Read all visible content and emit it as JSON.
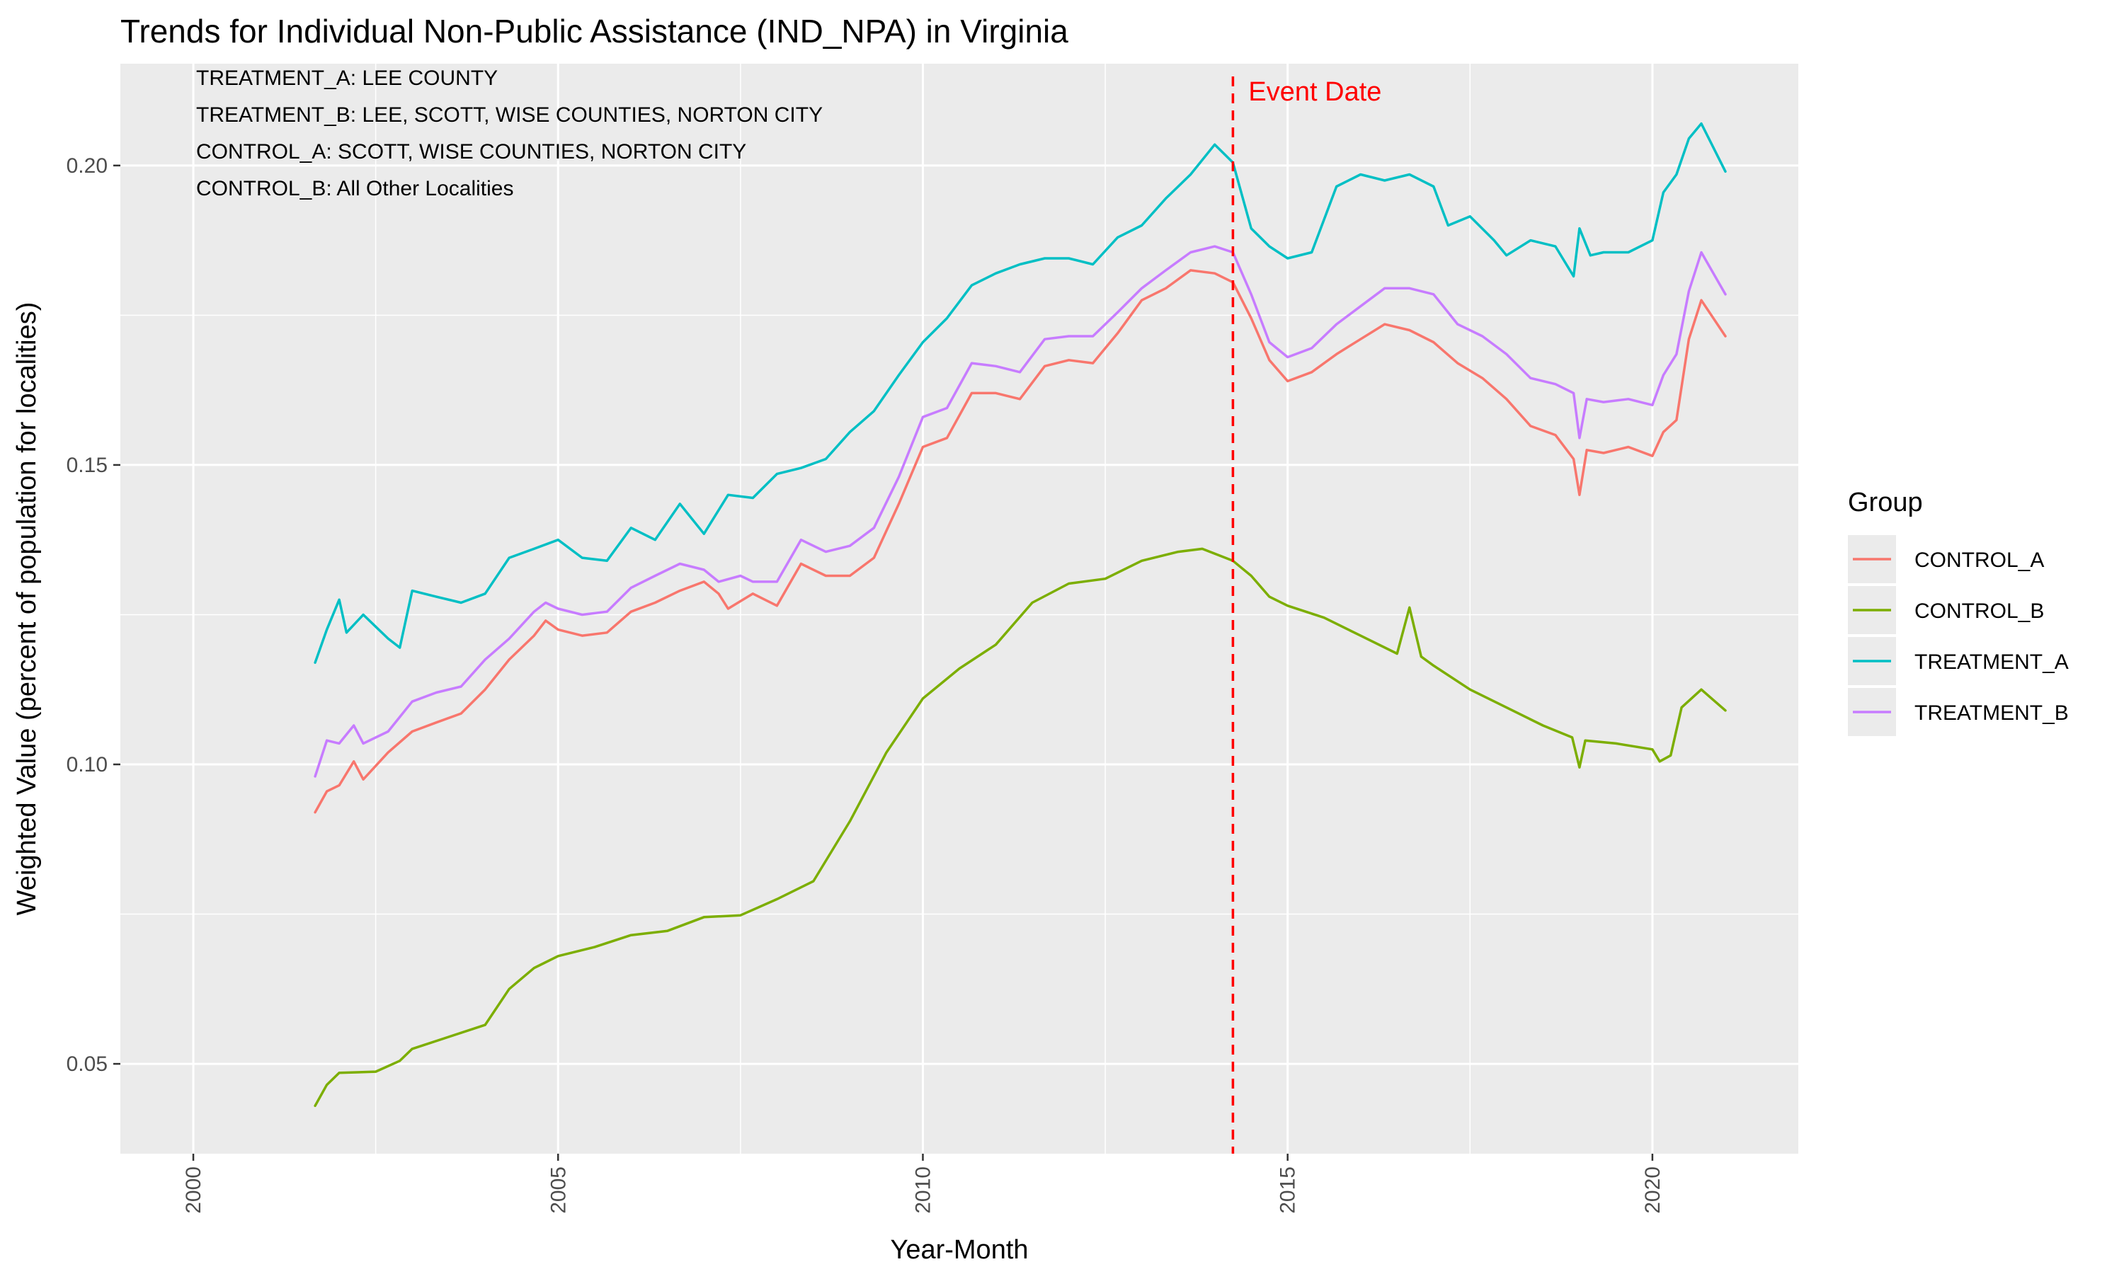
{
  "chart_data": {
    "type": "line",
    "title": "Trends for Individual Non-Public Assistance (IND_NPA) in Virginia",
    "xlabel": "Year-Month",
    "ylabel": "Weighted Value (percent of population for localities)",
    "xlim": [
      1999.0,
      2022.0
    ],
    "ylim": [
      0.035,
      0.217
    ],
    "x_ticks": [
      2000,
      2005,
      2010,
      2015,
      2020
    ],
    "y_ticks": [
      0.05,
      0.1,
      0.15,
      0.2
    ],
    "x_tick_labels": [
      "2000",
      "2005",
      "2010",
      "2015",
      "2020"
    ],
    "y_tick_labels": [
      "0.05",
      "0.10",
      "0.15",
      "0.20"
    ],
    "grid": true,
    "legend": {
      "title": "Group",
      "position": "right"
    },
    "annotations": [
      "TREATMENT_A: LEE COUNTY",
      "TREATMENT_B: LEE, SCOTT, WISE COUNTIES, NORTON CITY",
      "CONTROL_A: SCOTT, WISE COUNTIES, NORTON CITY",
      "CONTROL_B: All Other Localities"
    ],
    "event_line": {
      "x": 2014.25,
      "label": "Event Date",
      "color": "#ff0000"
    },
    "series": [
      {
        "name": "CONTROL_A",
        "color": "#F8766D",
        "points": [
          [
            2001.67,
            0.092
          ],
          [
            2001.83,
            0.0955
          ],
          [
            2002.0,
            0.0965
          ],
          [
            2002.2,
            0.1005
          ],
          [
            2002.33,
            0.0975
          ],
          [
            2002.67,
            0.102
          ],
          [
            2003.0,
            0.1055
          ],
          [
            2003.33,
            0.107
          ],
          [
            2003.67,
            0.1085
          ],
          [
            2004.0,
            0.1125
          ],
          [
            2004.33,
            0.1175
          ],
          [
            2004.67,
            0.1215
          ],
          [
            2004.83,
            0.124
          ],
          [
            2005.0,
            0.1225
          ],
          [
            2005.33,
            0.1215
          ],
          [
            2005.67,
            0.122
          ],
          [
            2006.0,
            0.1255
          ],
          [
            2006.33,
            0.127
          ],
          [
            2006.67,
            0.129
          ],
          [
            2007.0,
            0.1305
          ],
          [
            2007.2,
            0.1285
          ],
          [
            2007.33,
            0.126
          ],
          [
            2007.67,
            0.1285
          ],
          [
            2008.0,
            0.1265
          ],
          [
            2008.33,
            0.1335
          ],
          [
            2008.67,
            0.1315
          ],
          [
            2009.0,
            0.1315
          ],
          [
            2009.33,
            0.1345
          ],
          [
            2009.67,
            0.1435
          ],
          [
            2010.0,
            0.153
          ],
          [
            2010.33,
            0.1545
          ],
          [
            2010.67,
            0.162
          ],
          [
            2011.0,
            0.162
          ],
          [
            2011.33,
            0.161
          ],
          [
            2011.67,
            0.1665
          ],
          [
            2012.0,
            0.1675
          ],
          [
            2012.33,
            0.167
          ],
          [
            2012.67,
            0.172
          ],
          [
            2013.0,
            0.1775
          ],
          [
            2013.33,
            0.1795
          ],
          [
            2013.67,
            0.1825
          ],
          [
            2014.0,
            0.182
          ],
          [
            2014.25,
            0.1805
          ],
          [
            2014.5,
            0.1745
          ],
          [
            2014.75,
            0.1675
          ],
          [
            2015.0,
            0.164
          ],
          [
            2015.33,
            0.1655
          ],
          [
            2015.67,
            0.1685
          ],
          [
            2016.0,
            0.171
          ],
          [
            2016.33,
            0.1735
          ],
          [
            2016.67,
            0.1725
          ],
          [
            2017.0,
            0.1705
          ],
          [
            2017.33,
            0.167
          ],
          [
            2017.67,
            0.1645
          ],
          [
            2018.0,
            0.161
          ],
          [
            2018.33,
            0.1565
          ],
          [
            2018.67,
            0.155
          ],
          [
            2018.92,
            0.151
          ],
          [
            2019.0,
            0.145
          ],
          [
            2019.1,
            0.1525
          ],
          [
            2019.33,
            0.152
          ],
          [
            2019.67,
            0.153
          ],
          [
            2020.0,
            0.1515
          ],
          [
            2020.15,
            0.1555
          ],
          [
            2020.33,
            0.1575
          ],
          [
            2020.5,
            0.171
          ],
          [
            2020.67,
            0.1775
          ],
          [
            2021.0,
            0.1715
          ]
        ]
      },
      {
        "name": "CONTROL_B",
        "color": "#7CAE00",
        "points": [
          [
            2001.67,
            0.043
          ],
          [
            2001.83,
            0.0465
          ],
          [
            2002.0,
            0.0485
          ],
          [
            2002.5,
            0.0487
          ],
          [
            2002.83,
            0.0505
          ],
          [
            2003.0,
            0.0525
          ],
          [
            2003.5,
            0.0545
          ],
          [
            2004.0,
            0.0565
          ],
          [
            2004.33,
            0.0625
          ],
          [
            2004.67,
            0.066
          ],
          [
            2005.0,
            0.068
          ],
          [
            2005.5,
            0.0695
          ],
          [
            2006.0,
            0.0715
          ],
          [
            2006.5,
            0.0722
          ],
          [
            2007.0,
            0.0745
          ],
          [
            2007.5,
            0.0748
          ],
          [
            2008.0,
            0.0775
          ],
          [
            2008.5,
            0.0805
          ],
          [
            2009.0,
            0.0905
          ],
          [
            2009.5,
            0.102
          ],
          [
            2010.0,
            0.111
          ],
          [
            2010.5,
            0.116
          ],
          [
            2011.0,
            0.12
          ],
          [
            2011.5,
            0.127
          ],
          [
            2012.0,
            0.1302
          ],
          [
            2012.5,
            0.131
          ],
          [
            2013.0,
            0.134
          ],
          [
            2013.5,
            0.1355
          ],
          [
            2013.83,
            0.136
          ],
          [
            2014.25,
            0.134
          ],
          [
            2014.5,
            0.1315
          ],
          [
            2014.75,
            0.128
          ],
          [
            2015.0,
            0.1265
          ],
          [
            2015.5,
            0.1245
          ],
          [
            2016.0,
            0.1215
          ],
          [
            2016.5,
            0.1185
          ],
          [
            2016.67,
            0.1262
          ],
          [
            2016.83,
            0.118
          ],
          [
            2017.0,
            0.1165
          ],
          [
            2017.5,
            0.1125
          ],
          [
            2018.0,
            0.1095
          ],
          [
            2018.5,
            0.1065
          ],
          [
            2018.9,
            0.1045
          ],
          [
            2019.0,
            0.0995
          ],
          [
            2019.08,
            0.104
          ],
          [
            2019.5,
            0.1035
          ],
          [
            2020.0,
            0.1025
          ],
          [
            2020.1,
            0.1005
          ],
          [
            2020.25,
            0.1015
          ],
          [
            2020.4,
            0.1095
          ],
          [
            2020.67,
            0.1125
          ],
          [
            2021.0,
            0.109
          ]
        ]
      },
      {
        "name": "TREATMENT_A",
        "color": "#00BFC4",
        "points": [
          [
            2001.67,
            0.117
          ],
          [
            2001.83,
            0.1225
          ],
          [
            2002.0,
            0.1275
          ],
          [
            2002.1,
            0.122
          ],
          [
            2002.33,
            0.125
          ],
          [
            2002.67,
            0.121
          ],
          [
            2002.83,
            0.1195
          ],
          [
            2003.0,
            0.129
          ],
          [
            2003.33,
            0.128
          ],
          [
            2003.67,
            0.127
          ],
          [
            2004.0,
            0.1285
          ],
          [
            2004.33,
            0.1345
          ],
          [
            2004.67,
            0.136
          ],
          [
            2005.0,
            0.1375
          ],
          [
            2005.33,
            0.1345
          ],
          [
            2005.67,
            0.134
          ],
          [
            2006.0,
            0.1395
          ],
          [
            2006.33,
            0.1375
          ],
          [
            2006.67,
            0.1435
          ],
          [
            2007.0,
            0.1385
          ],
          [
            2007.33,
            0.145
          ],
          [
            2007.67,
            0.1445
          ],
          [
            2008.0,
            0.1485
          ],
          [
            2008.33,
            0.1495
          ],
          [
            2008.67,
            0.151
          ],
          [
            2009.0,
            0.1555
          ],
          [
            2009.33,
            0.159
          ],
          [
            2009.67,
            0.165
          ],
          [
            2010.0,
            0.1705
          ],
          [
            2010.33,
            0.1745
          ],
          [
            2010.67,
            0.18
          ],
          [
            2011.0,
            0.182
          ],
          [
            2011.33,
            0.1835
          ],
          [
            2011.67,
            0.1845
          ],
          [
            2012.0,
            0.1845
          ],
          [
            2012.33,
            0.1835
          ],
          [
            2012.67,
            0.188
          ],
          [
            2013.0,
            0.19
          ],
          [
            2013.33,
            0.1945
          ],
          [
            2013.67,
            0.1985
          ],
          [
            2014.0,
            0.2035
          ],
          [
            2014.25,
            0.2005
          ],
          [
            2014.5,
            0.1895
          ],
          [
            2014.75,
            0.1865
          ],
          [
            2015.0,
            0.1845
          ],
          [
            2015.33,
            0.1855
          ],
          [
            2015.67,
            0.1965
          ],
          [
            2016.0,
            0.1985
          ],
          [
            2016.33,
            0.1975
          ],
          [
            2016.67,
            0.1985
          ],
          [
            2017.0,
            0.1965
          ],
          [
            2017.2,
            0.19
          ],
          [
            2017.5,
            0.1915
          ],
          [
            2017.83,
            0.1875
          ],
          [
            2018.0,
            0.185
          ],
          [
            2018.33,
            0.1875
          ],
          [
            2018.67,
            0.1865
          ],
          [
            2018.92,
            0.1815
          ],
          [
            2019.0,
            0.1895
          ],
          [
            2019.15,
            0.185
          ],
          [
            2019.33,
            0.1855
          ],
          [
            2019.67,
            0.1855
          ],
          [
            2020.0,
            0.1875
          ],
          [
            2020.15,
            0.1955
          ],
          [
            2020.33,
            0.1985
          ],
          [
            2020.5,
            0.2045
          ],
          [
            2020.67,
            0.207
          ],
          [
            2021.0,
            0.199
          ]
        ]
      },
      {
        "name": "TREATMENT_B",
        "color": "#C77CFF",
        "points": [
          [
            2001.67,
            0.098
          ],
          [
            2001.83,
            0.104
          ],
          [
            2002.0,
            0.1035
          ],
          [
            2002.2,
            0.1065
          ],
          [
            2002.33,
            0.1035
          ],
          [
            2002.67,
            0.1055
          ],
          [
            2003.0,
            0.1105
          ],
          [
            2003.33,
            0.112
          ],
          [
            2003.67,
            0.113
          ],
          [
            2004.0,
            0.1175
          ],
          [
            2004.33,
            0.121
          ],
          [
            2004.67,
            0.1255
          ],
          [
            2004.83,
            0.127
          ],
          [
            2005.0,
            0.126
          ],
          [
            2005.33,
            0.125
          ],
          [
            2005.67,
            0.1255
          ],
          [
            2006.0,
            0.1295
          ],
          [
            2006.33,
            0.1315
          ],
          [
            2006.67,
            0.1335
          ],
          [
            2007.0,
            0.1325
          ],
          [
            2007.2,
            0.1305
          ],
          [
            2007.5,
            0.1315
          ],
          [
            2007.67,
            0.1305
          ],
          [
            2008.0,
            0.1305
          ],
          [
            2008.33,
            0.1375
          ],
          [
            2008.67,
            0.1355
          ],
          [
            2009.0,
            0.1365
          ],
          [
            2009.33,
            0.1395
          ],
          [
            2009.67,
            0.148
          ],
          [
            2010.0,
            0.158
          ],
          [
            2010.33,
            0.1595
          ],
          [
            2010.67,
            0.167
          ],
          [
            2011.0,
            0.1665
          ],
          [
            2011.33,
            0.1655
          ],
          [
            2011.67,
            0.171
          ],
          [
            2012.0,
            0.1715
          ],
          [
            2012.33,
            0.1715
          ],
          [
            2012.67,
            0.1755
          ],
          [
            2013.0,
            0.1795
          ],
          [
            2013.33,
            0.1825
          ],
          [
            2013.67,
            0.1855
          ],
          [
            2014.0,
            0.1865
          ],
          [
            2014.25,
            0.1855
          ],
          [
            2014.5,
            0.1785
          ],
          [
            2014.75,
            0.1705
          ],
          [
            2015.0,
            0.168
          ],
          [
            2015.33,
            0.1695
          ],
          [
            2015.67,
            0.1735
          ],
          [
            2016.0,
            0.1765
          ],
          [
            2016.33,
            0.1795
          ],
          [
            2016.67,
            0.1795
          ],
          [
            2017.0,
            0.1785
          ],
          [
            2017.33,
            0.1735
          ],
          [
            2017.67,
            0.1715
          ],
          [
            2018.0,
            0.1685
          ],
          [
            2018.33,
            0.1645
          ],
          [
            2018.67,
            0.1635
          ],
          [
            2018.92,
            0.162
          ],
          [
            2019.0,
            0.1545
          ],
          [
            2019.1,
            0.161
          ],
          [
            2019.33,
            0.1605
          ],
          [
            2019.67,
            0.161
          ],
          [
            2020.0,
            0.16
          ],
          [
            2020.15,
            0.165
          ],
          [
            2020.33,
            0.1685
          ],
          [
            2020.5,
            0.179
          ],
          [
            2020.67,
            0.1855
          ],
          [
            2021.0,
            0.1785
          ]
        ]
      }
    ]
  }
}
